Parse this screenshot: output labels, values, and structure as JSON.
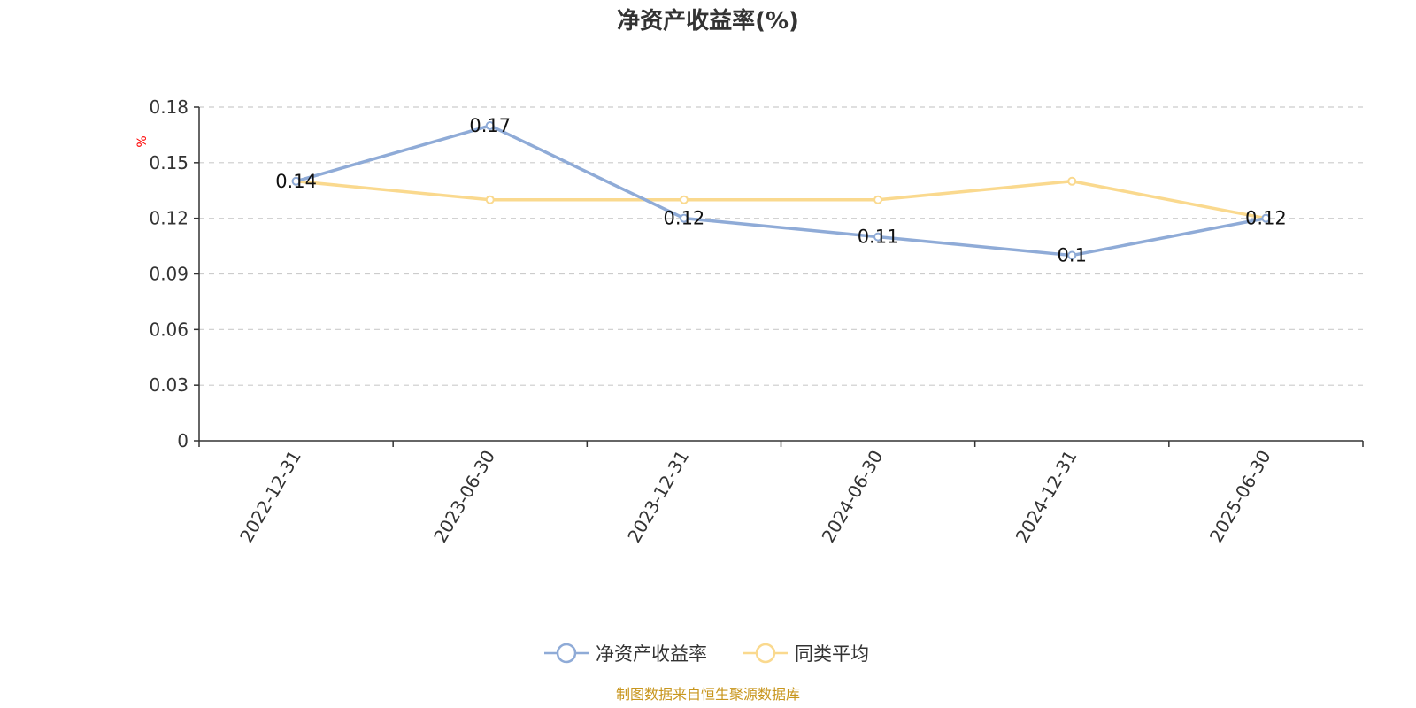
{
  "chart_data": {
    "type": "line",
    "title": "净资产收益率(%)",
    "ylabel": "%",
    "xlabel": "",
    "categories": [
      "2022-12-31",
      "2023-06-30",
      "2023-12-31",
      "2024-06-30",
      "2024-12-31",
      "2025-06-30"
    ],
    "series": [
      {
        "name": "净资产收益率",
        "values": [
          0.14,
          0.17,
          0.12,
          0.11,
          0.1,
          0.12
        ],
        "labels": [
          "0.14",
          "0.17",
          "0.12",
          "0.11",
          "0.1",
          "0.12"
        ],
        "color": "#8fabd7"
      },
      {
        "name": "同类平均",
        "values": [
          0.14,
          0.13,
          0.13,
          0.13,
          0.14,
          0.12
        ],
        "color": "#fad98e"
      }
    ],
    "ylim": [
      0,
      0.18
    ],
    "yticks": [
      "0",
      "0.03",
      "0.06",
      "0.09",
      "0.12",
      "0.15",
      "0.18"
    ],
    "grid": true,
    "legend_position": "bottom"
  },
  "source_note": "制图数据来自恒生聚源数据库"
}
